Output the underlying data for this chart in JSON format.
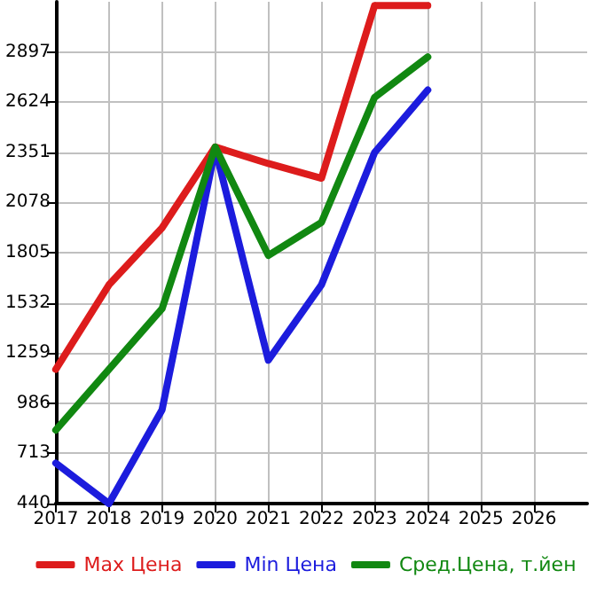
{
  "chart_data": {
    "type": "line",
    "x": [
      2017,
      2018,
      2019,
      2020,
      2021,
      2022,
      2023,
      2024
    ],
    "series": [
      {
        "name": "Max Цена",
        "color": "#dd1c1c",
        "values": [
          1170,
          1630,
          1940,
          2380,
          2290,
          2210,
          3150,
          3150
        ]
      },
      {
        "name": "Min Цена",
        "color": "#1c1cdd",
        "values": [
          660,
          440,
          950,
          2370,
          1220,
          1630,
          2350,
          2690
        ]
      },
      {
        "name": "Сред.Цена, т.йен",
        "color": "#118811",
        "values": [
          840,
          1170,
          1500,
          2380,
          1790,
          1970,
          2650,
          2870
        ]
      }
    ],
    "xlim": [
      2017,
      2027
    ],
    "xticks": [
      2017,
      2018,
      2019,
      2020,
      2021,
      2022,
      2023,
      2024,
      2025,
      2026
    ],
    "ylim": [
      440,
      3170
    ],
    "yticks": [
      440,
      713,
      986,
      1259,
      1532,
      1805,
      2078,
      2351,
      2624,
      2897
    ],
    "grid": true,
    "legend": "bottom",
    "marker": "none",
    "line_style": "solid"
  }
}
